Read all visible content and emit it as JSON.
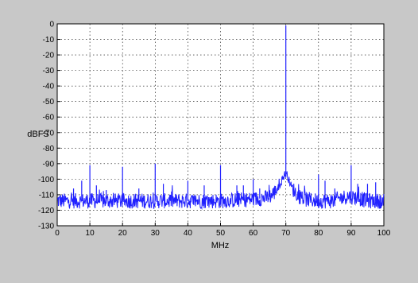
{
  "chart_data": {
    "type": "line",
    "xlabel": "MHz",
    "ylabel": "dBFS",
    "xlim": [
      0,
      100
    ],
    "ylim": [
      -130,
      0
    ],
    "grid": true,
    "x_ticks": [
      "0",
      "10",
      "20",
      "30",
      "40",
      "50",
      "60",
      "70",
      "80",
      "90",
      "100"
    ],
    "y_ticks": [
      "0",
      "-10",
      "-20",
      "-30",
      "-40",
      "-50",
      "-60",
      "-70",
      "-80",
      "-90",
      "-100",
      "-110",
      "-120",
      "-130"
    ],
    "line_color": "#2020ff",
    "plot_background": "#ffffff",
    "figure_background": "#c8c8c8",
    "noise_floor": [
      {
        "x": 0,
        "y": -114
      },
      {
        "x": 10,
        "y": -114
      },
      {
        "x": 20,
        "y": -114
      },
      {
        "x": 30,
        "y": -114
      },
      {
        "x": 40,
        "y": -114
      },
      {
        "x": 50,
        "y": -114
      },
      {
        "x": 60,
        "y": -113
      },
      {
        "x": 64,
        "y": -112
      },
      {
        "x": 66,
        "y": -110
      },
      {
        "x": 68,
        "y": -104
      },
      {
        "x": 69,
        "y": -100
      },
      {
        "x": 69.6,
        "y": -97
      },
      {
        "x": 70.4,
        "y": -97
      },
      {
        "x": 71,
        "y": -101
      },
      {
        "x": 72,
        "y": -106
      },
      {
        "x": 74,
        "y": -111
      },
      {
        "x": 76,
        "y": -113
      },
      {
        "x": 80,
        "y": -114
      },
      {
        "x": 84,
        "y": -114
      },
      {
        "x": 87,
        "y": -112
      },
      {
        "x": 89,
        "y": -111
      },
      {
        "x": 92,
        "y": -112
      },
      {
        "x": 95,
        "y": -114
      },
      {
        "x": 100,
        "y": -114
      }
    ],
    "spurs": [
      {
        "x": 5,
        "y": -106
      },
      {
        "x": 7.5,
        "y": -101
      },
      {
        "x": 10,
        "y": -91
      },
      {
        "x": 12,
        "y": -104
      },
      {
        "x": 15,
        "y": -107
      },
      {
        "x": 20,
        "y": -92
      },
      {
        "x": 25,
        "y": -106
      },
      {
        "x": 30,
        "y": -90
      },
      {
        "x": 32.5,
        "y": -103
      },
      {
        "x": 35,
        "y": -108
      },
      {
        "x": 40,
        "y": -101
      },
      {
        "x": 45,
        "y": -104
      },
      {
        "x": 50,
        "y": -91
      },
      {
        "x": 55,
        "y": -104
      },
      {
        "x": 57,
        "y": -104
      },
      {
        "x": 60,
        "y": -100
      },
      {
        "x": 62,
        "y": -106
      },
      {
        "x": 66,
        "y": -106
      },
      {
        "x": 70,
        "y": -1
      },
      {
        "x": 75,
        "y": -108
      },
      {
        "x": 80,
        "y": -97
      },
      {
        "x": 82,
        "y": -101
      },
      {
        "x": 85,
        "y": -106
      },
      {
        "x": 90,
        "y": -91
      },
      {
        "x": 92,
        "y": -103
      },
      {
        "x": 95,
        "y": -103
      },
      {
        "x": 97.5,
        "y": -102
      }
    ]
  }
}
